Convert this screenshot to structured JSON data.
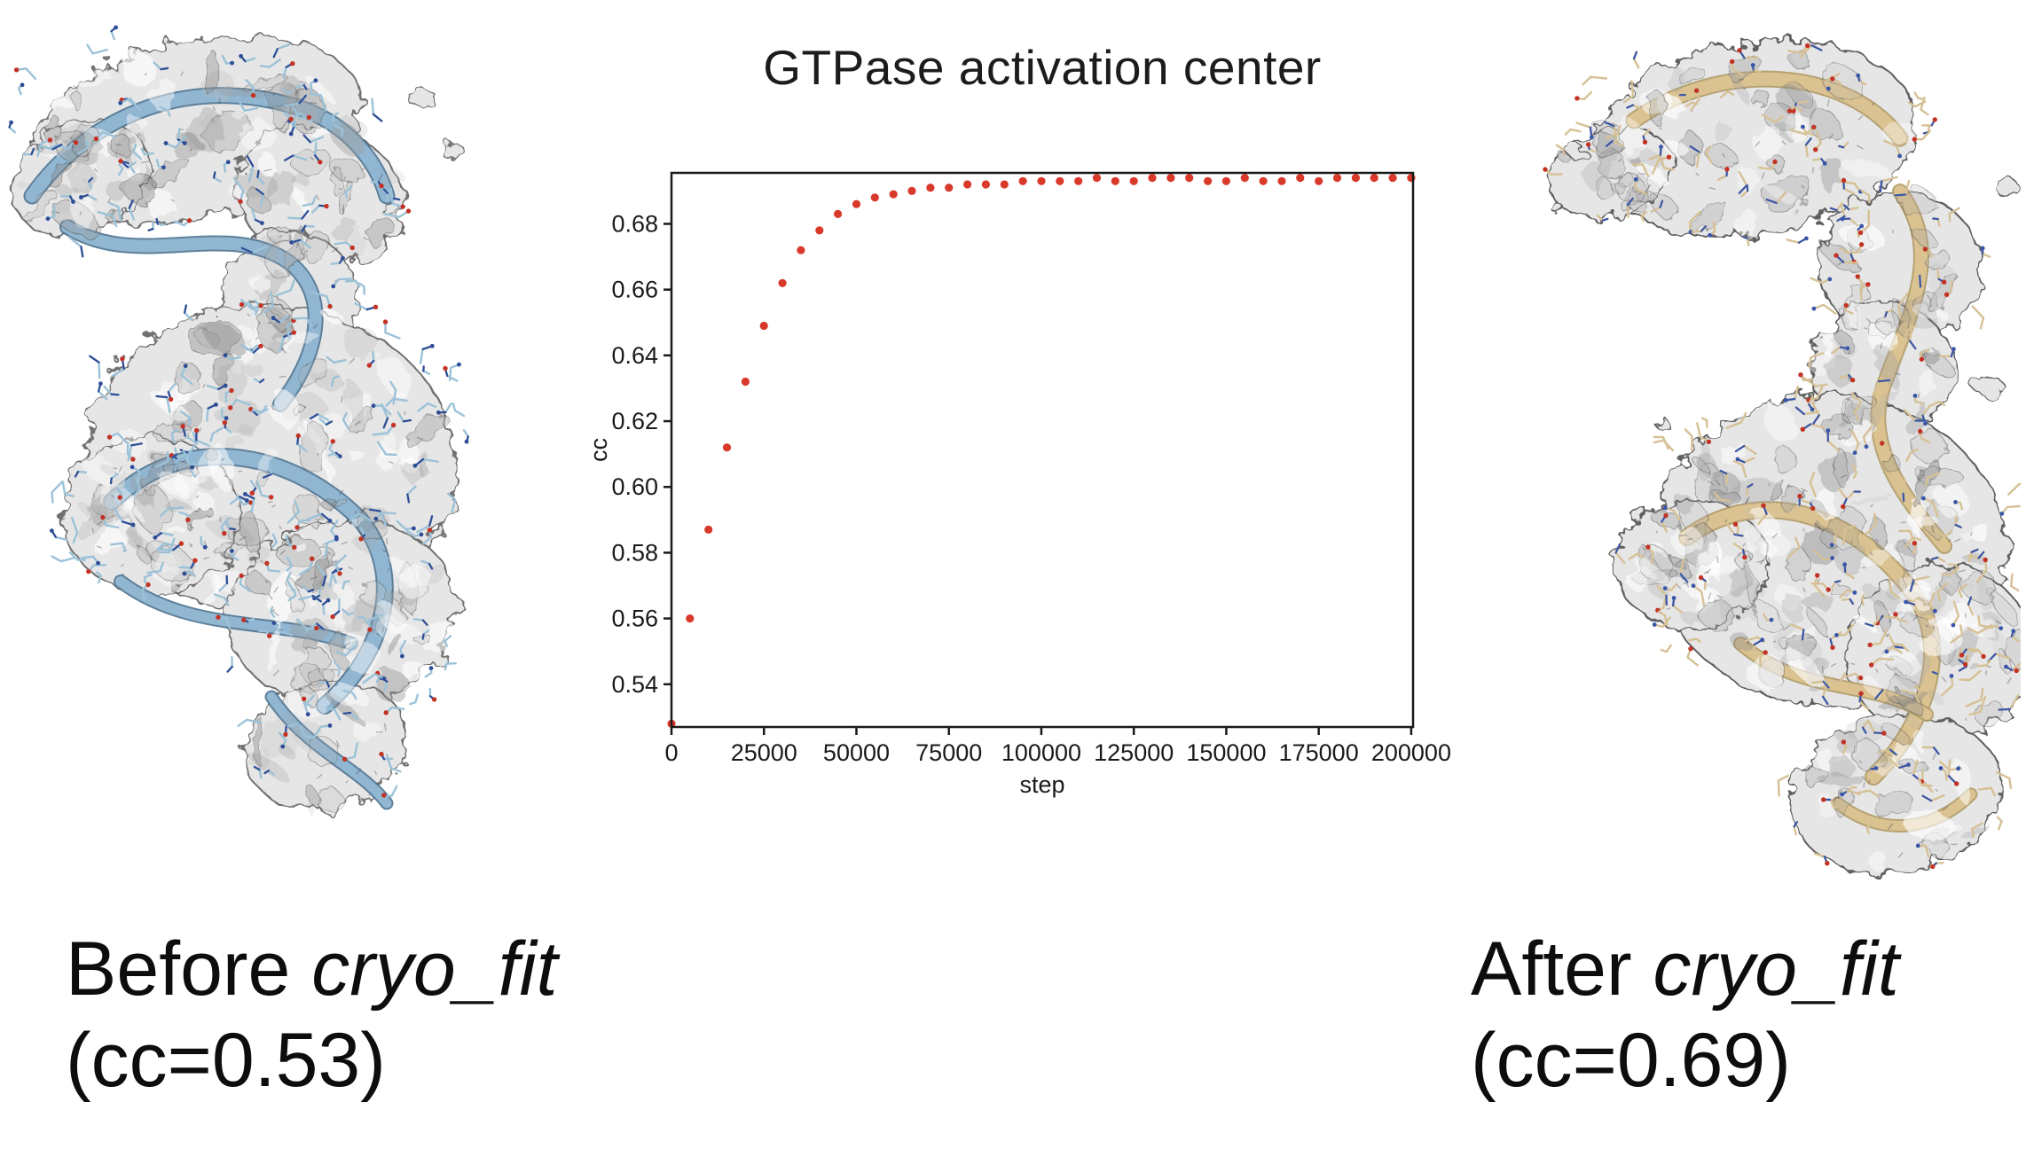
{
  "page": {
    "background": "#ffffff"
  },
  "chart_data": {
    "type": "scatter",
    "title": "GTPase activation center",
    "xlabel": "step",
    "ylabel": "cc",
    "x": [
      0,
      5000,
      10000,
      15000,
      20000,
      25000,
      30000,
      35000,
      40000,
      45000,
      50000,
      55000,
      60000,
      65000,
      70000,
      75000,
      80000,
      85000,
      90000,
      95000,
      100000,
      105000,
      110000,
      115000,
      120000,
      125000,
      130000,
      135000,
      140000,
      145000,
      150000,
      155000,
      160000,
      165000,
      170000,
      175000,
      180000,
      185000,
      190000,
      195000,
      200000
    ],
    "values": [
      0.528,
      0.56,
      0.587,
      0.612,
      0.632,
      0.649,
      0.662,
      0.672,
      0.678,
      0.683,
      0.686,
      0.688,
      0.689,
      0.69,
      0.691,
      0.691,
      0.692,
      0.692,
      0.692,
      0.693,
      0.693,
      0.693,
      0.693,
      0.694,
      0.693,
      0.693,
      0.694,
      0.694,
      0.694,
      0.693,
      0.693,
      0.694,
      0.693,
      0.693,
      0.694,
      0.693,
      0.694,
      0.694,
      0.694,
      0.694,
      0.694
    ],
    "xlim": [
      0,
      200500
    ],
    "ylim": [
      0.527,
      0.6955
    ],
    "xticks": [
      0,
      25000,
      50000,
      75000,
      100000,
      125000,
      150000,
      175000,
      200000
    ],
    "yticks": [
      0.54,
      0.56,
      0.58,
      0.6,
      0.62,
      0.64,
      0.66,
      0.68
    ],
    "grid": false,
    "legend": null,
    "dot_color": "#d9392a",
    "axis_color": "#1a1a1a",
    "tick_font_px": 27,
    "label_font_px": 27
  },
  "captions": {
    "before": {
      "prefix": "Before ",
      "tool": "cryo_fit",
      "line2": "(cc=0.53)"
    },
    "after": {
      "prefix": "After ",
      "tool": "cryo_fit",
      "line2": "(cc=0.69)"
    }
  },
  "molecules": {
    "before": {
      "name": "density-map-with-model-before-fitting",
      "surface_color": "#e6e6e6",
      "surface_edge": "#6f6f6f",
      "mottle_dark": "#8a8a8a",
      "ribbon_color": "#93b9d4",
      "ribbon_edge": "#4d7391",
      "stick_color": "#9cc2d8",
      "stick_dark": "#2e4d96",
      "oxygen_color": "#c23325"
    },
    "after": {
      "name": "density-map-with-model-after-fitting",
      "surface_color": "#e6e6e6",
      "surface_edge": "#5e5e5e",
      "mottle_dark": "#8a8a8a",
      "ribbon_color": "#dcc492",
      "ribbon_edge": "#b09a66",
      "stick_color": "#d6c196",
      "stick_dark": "#3a56a8",
      "oxygen_color": "#c23325"
    }
  }
}
